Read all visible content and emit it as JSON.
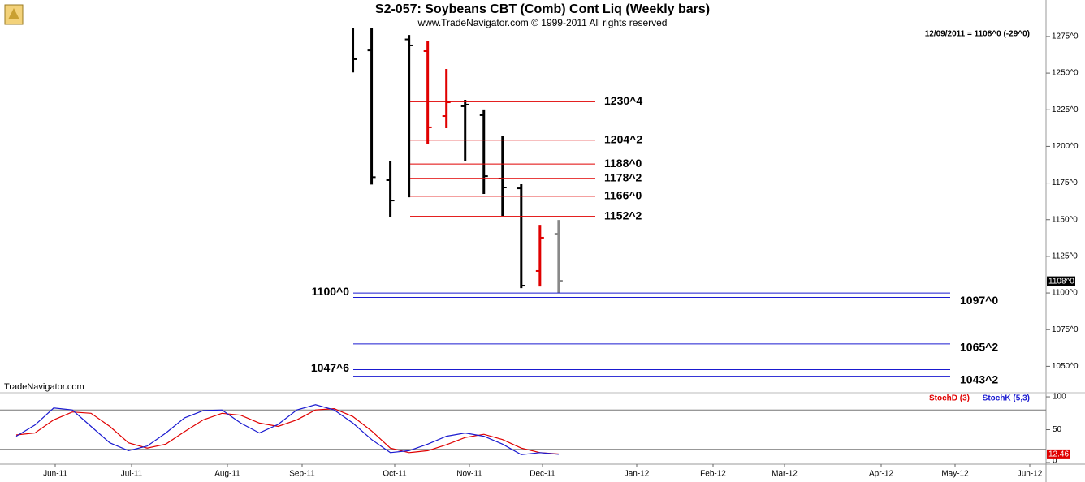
{
  "chart_data": [
    {
      "type": "ohlc",
      "title": "S2-057:  Soybeans CBT (Comb) Cont Liq  (Weekly bars)",
      "subtitle": "www.TradeNavigator.com © 1999-2011 All rights reserved",
      "watermark": "TradeNavigator.com",
      "status": "12/09/2011 = 1108^0 (-29^0)",
      "last_price": {
        "value": 1108,
        "label": "1108^0"
      },
      "ylim": [
        1032.5,
        1280.5
      ],
      "yticks": [
        {
          "value": 1050,
          "label": "1050^0"
        },
        {
          "value": 1075,
          "label": "1075^0"
        },
        {
          "value": 1100,
          "label": "1100^0"
        },
        {
          "value": 1125,
          "label": "1125^0"
        },
        {
          "value": 1150,
          "label": "1150^0"
        },
        {
          "value": 1175,
          "label": "1175^0"
        },
        {
          "value": 1200,
          "label": "1200^0"
        },
        {
          "value": 1225,
          "label": "1225^0"
        },
        {
          "value": 1250,
          "label": "1250^0"
        },
        {
          "value": 1275,
          "label": "1275^0"
        }
      ],
      "bars": {
        "open": [
          1283,
          1265.5,
          1177,
          1273,
          1265,
          1220.7,
          1227.4,
          1221.3,
          1178.1,
          1171.4,
          1115,
          1140.4
        ],
        "high": [
          1290,
          1290,
          1190.3,
          1276,
          1272.2,
          1252.8,
          1231.8,
          1225.2,
          1206.9,
          1174.2,
          1146.5,
          1149.8
        ],
        "low": [
          1250.5,
          1174,
          1152,
          1165.3,
          1201.9,
          1212.4,
          1190.3,
          1167.6,
          1152.6,
          1103.3,
          1104.4,
          1100
        ],
        "close": [
          1259.5,
          1179,
          1163.1,
          1268.9,
          1213,
          1230.1,
          1228.5,
          1179.7,
          1172,
          1105,
          1137.7,
          1108.3
        ],
        "colors": [
          "#000000",
          "#000000",
          "#000000",
          "#000000",
          "#e00000",
          "#e00000",
          "#000000",
          "#000000",
          "#000000",
          "#000000",
          "#e00000",
          "#888888"
        ]
      },
      "levels": [
        {
          "value": 1230.5,
          "label": "1230^4",
          "color": "#e00000"
        },
        {
          "value": 1204.25,
          "label": "1204^2",
          "color": "#e00000"
        },
        {
          "value": 1188,
          "label": "1188^0",
          "color": "#e00000"
        },
        {
          "value": 1178.25,
          "label": "1178^2",
          "color": "#e00000"
        },
        {
          "value": 1166,
          "label": "1166^0",
          "color": "#e00000"
        },
        {
          "value": 1152.25,
          "label": "1152^2",
          "color": "#e00000"
        },
        {
          "value": 1100,
          "label": "1100^0",
          "color": "#1a1ad0"
        },
        {
          "value": 1097,
          "label": "1097^0",
          "color": "#1a1ad0"
        },
        {
          "value": 1065.25,
          "label": "1065^2",
          "color": "#1a1ad0"
        },
        {
          "value": 1047.75,
          "label": "1047^6",
          "color": "#1a1ad0"
        },
        {
          "value": 1043.25,
          "label": "1043^2",
          "color": "#1a1ad0"
        }
      ]
    },
    {
      "type": "line",
      "ylim": [
        -2.5,
        105
      ],
      "yticks": [
        0,
        50,
        100
      ],
      "hlines": [
        20,
        80
      ],
      "last_value": 12.46,
      "months": [
        "Jun-11",
        "Jul-11",
        "Aug-11",
        "Sep-11",
        "Oct-11",
        "Nov-11",
        "Dec-11",
        "Jan-12",
        "Feb-12",
        "Mar-12",
        "Apr-12",
        "May-12",
        "Jun-12"
      ],
      "series": [
        {
          "name": "StochD (3)",
          "color": "#e00000",
          "values": [
            42,
            45,
            65,
            77,
            75,
            55,
            30,
            22,
            28,
            47,
            65,
            75,
            72,
            60,
            55,
            65,
            80,
            82,
            70,
            48,
            22,
            15,
            18,
            27,
            38,
            43,
            35,
            22,
            15,
            13
          ]
        },
        {
          "name": "StochK (5,3)",
          "color": "#1a1ad0",
          "values": [
            40,
            57,
            83,
            80,
            55,
            30,
            18,
            25,
            45,
            68,
            79,
            80,
            60,
            45,
            58,
            80,
            88,
            80,
            60,
            35,
            15,
            18,
            28,
            40,
            45,
            40,
            28,
            12,
            15,
            12.46
          ]
        }
      ]
    }
  ]
}
